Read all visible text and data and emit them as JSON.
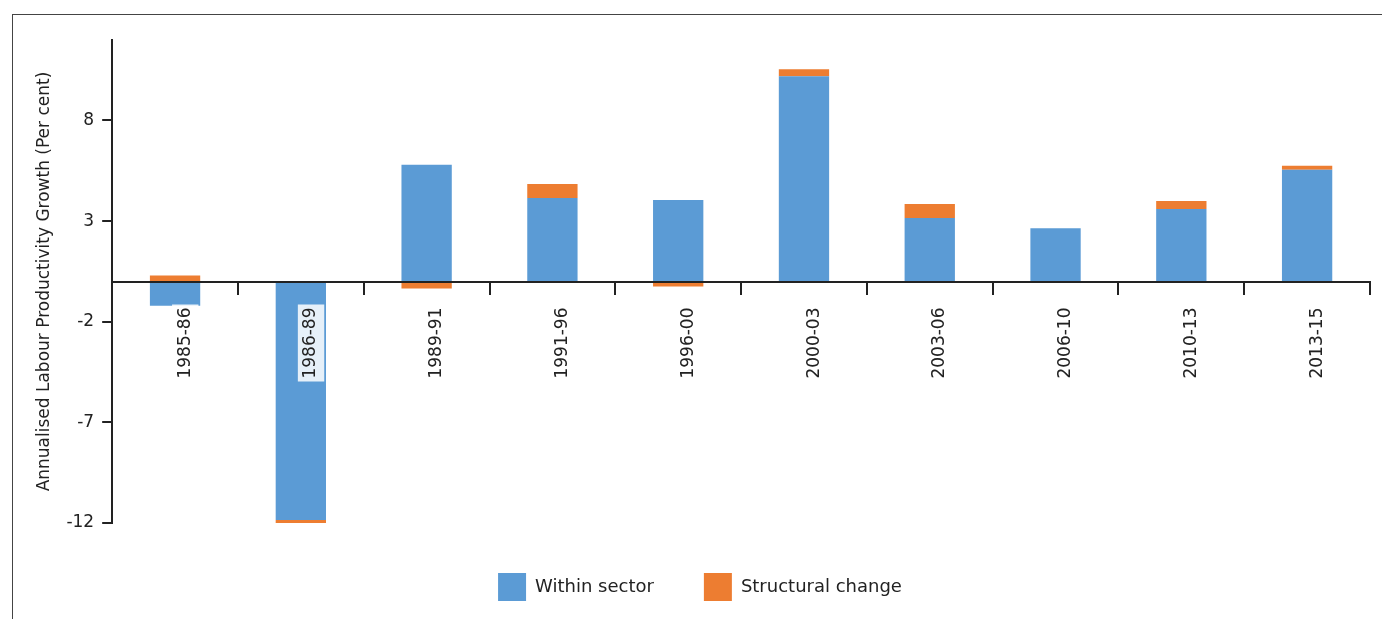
{
  "chart_data": {
    "type": "bar",
    "stacked": true,
    "ylabel": "Annualised Labour Productivity Growth (Per cent)",
    "categories": [
      "1985-86",
      "1986-89",
      "1989-91",
      "1991-96",
      "1996-00",
      "2000-03",
      "2003-06",
      "2006-10",
      "2010-13",
      "2013-15"
    ],
    "series": [
      {
        "name": "Within sector",
        "color": "#5b9bd5",
        "values": [
          -1.2,
          -11.85,
          5.8,
          4.15,
          4.05,
          10.2,
          3.15,
          2.65,
          3.6,
          5.55
        ]
      },
      {
        "name": "Structural change",
        "color": "#ed7d31",
        "values": [
          0.3,
          -0.15,
          -0.35,
          0.7,
          -0.25,
          0.35,
          0.7,
          0,
          0.4,
          0.2
        ]
      }
    ],
    "ylim": [
      -12,
      12
    ],
    "yticks": [
      -12,
      -7,
      -2,
      3,
      8
    ],
    "grid": false,
    "legend": "bottom"
  }
}
